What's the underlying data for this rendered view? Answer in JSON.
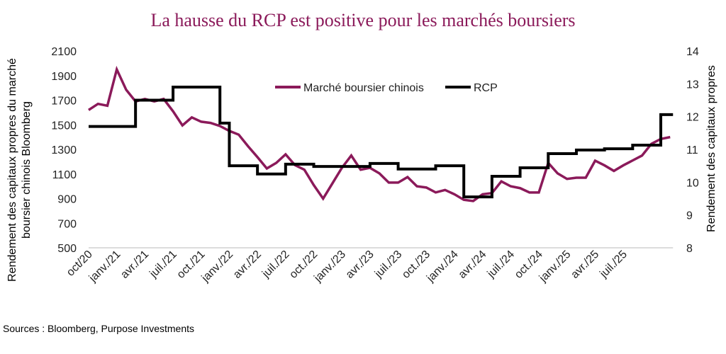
{
  "chart_data": {
    "type": "line",
    "title": "La hausse du RCP est positive pour les marchés boursiers",
    "ylabel_left": [
      "Rendement des capitaux propres du marché",
      "boursier chinois Bloomberg"
    ],
    "ylabel_right": "Rendement des capitaux propres",
    "ylim_left": [
      500,
      2100
    ],
    "ylim_right": [
      8,
      14
    ],
    "yticks_left": [
      500,
      700,
      900,
      1100,
      1300,
      1500,
      1700,
      1900,
      2100
    ],
    "yticks_right": [
      8,
      9,
      10,
      11,
      12,
      13,
      14
    ],
    "xtick_labels": [
      "oct/20",
      "janv./21",
      "avr./21",
      "juil./21",
      "oct./21",
      "janv./22",
      "avr./22",
      "juil./22",
      "oct./22",
      "janv./23",
      "avr./23",
      "juil./23",
      "oct./23",
      "janv./24",
      "avr./24",
      "juil./24",
      "oct./24",
      "janv./25",
      "avr./25",
      "juil./25"
    ],
    "xtick_dates": [
      "2020-10",
      "2021-01",
      "2021-04",
      "2021-07",
      "2021-10",
      "2022-01",
      "2022-04",
      "2022-07",
      "2022-10",
      "2023-01",
      "2023-04",
      "2023-07",
      "2023-10",
      "2024-01",
      "2024-04",
      "2024-07",
      "2024-10",
      "2025-01",
      "2025-04",
      "2025-07"
    ],
    "grid": false,
    "legend_placement": "top-center",
    "x_start": "2020-10",
    "x_frequency": "monthly",
    "series": [
      {
        "name": "Marché boursier chinois",
        "axis": "left",
        "color": "#8b1a5a",
        "step": false,
        "values": [
          1620,
          1670,
          1655,
          1950,
          1785,
          1690,
          1710,
          1690,
          1710,
          1610,
          1495,
          1560,
          1525,
          1515,
          1490,
          1450,
          1420,
          1325,
          1237,
          1145,
          1190,
          1260,
          1172,
          1135,
          1010,
          900,
          1025,
          1150,
          1250,
          1135,
          1150,
          1105,
          1030,
          1030,
          1075,
          1000,
          990,
          950,
          970,
          935,
          890,
          880,
          935,
          945,
          1040,
          1000,
          985,
          950,
          950,
          1190,
          1105,
          1060,
          1070,
          1070,
          1208,
          1170,
          1125,
          1170,
          1210,
          1250,
          1345,
          1385,
          1400
        ]
      },
      {
        "name": "RCP",
        "axis": "right",
        "color": "#000000",
        "step": true,
        "values": [
          11.7,
          11.7,
          11.7,
          11.7,
          11.7,
          12.5,
          12.5,
          12.5,
          12.5,
          12.9,
          12.9,
          12.9,
          12.9,
          12.9,
          11.8,
          10.5,
          10.5,
          10.5,
          10.25,
          10.25,
          10.25,
          10.55,
          10.55,
          10.55,
          10.48,
          10.48,
          10.48,
          10.48,
          10.48,
          10.48,
          10.57,
          10.57,
          10.57,
          10.4,
          10.4,
          10.4,
          10.4,
          10.5,
          10.5,
          10.5,
          9.55,
          9.55,
          9.55,
          10.18,
          10.18,
          10.18,
          10.44,
          10.44,
          10.44,
          10.87,
          10.87,
          10.87,
          10.98,
          10.98,
          10.98,
          11.02,
          11.02,
          11.02,
          11.13,
          11.13,
          11.13,
          12.06,
          12.06
        ]
      }
    ]
  },
  "sources": "Sources : Bloomberg, Purpose Investments"
}
